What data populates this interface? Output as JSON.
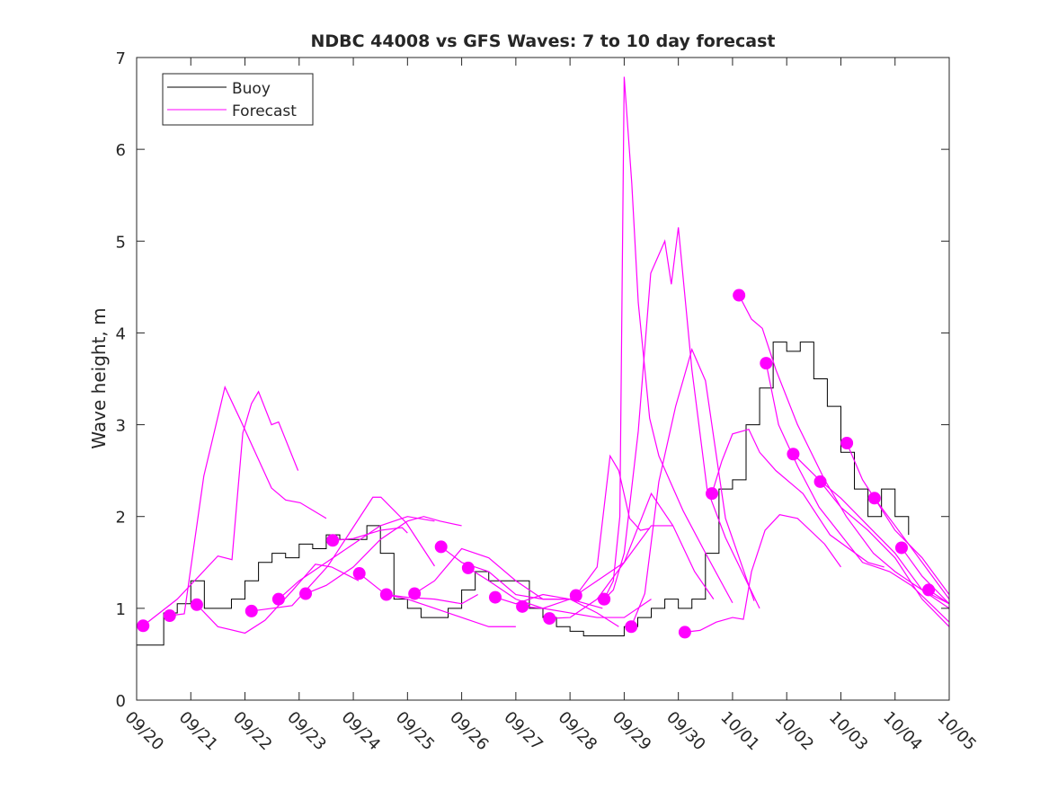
{
  "chart_data": {
    "type": "line",
    "title": "NDBC 44008 vs GFS Waves: 7 to 10 day forecast",
    "xlabel": "",
    "ylabel": "Wave height, m",
    "xlim_days": [
      0,
      15
    ],
    "ylim": [
      0,
      7
    ],
    "yticks": [
      0,
      1,
      2,
      3,
      4,
      5,
      6,
      7
    ],
    "xtick_labels": [
      "09/20",
      "09/21",
      "09/22",
      "09/23",
      "09/24",
      "09/25",
      "09/26",
      "09/27",
      "09/28",
      "09/29",
      "09/30",
      "10/01",
      "10/02",
      "10/03",
      "10/04",
      "10/05"
    ],
    "legend": {
      "placement": "top-left",
      "entries": [
        "Buoy",
        "Forecast"
      ]
    },
    "colors": {
      "buoy": "#000000",
      "forecast": "#ff00ff"
    },
    "buoy": {
      "name": "Buoy",
      "x_days": [
        0,
        0.25,
        0.4,
        0.5,
        0.75,
        1.0,
        1.25,
        1.5,
        1.75,
        2.0,
        2.25,
        2.5,
        2.75,
        3.0,
        3.25,
        3.5,
        3.75,
        4.0,
        4.25,
        4.5,
        4.75,
        5.0,
        5.25,
        5.5,
        5.75,
        6.0,
        6.25,
        6.5,
        6.75,
        7.0,
        7.25,
        7.5,
        7.75,
        8.0,
        8.25,
        8.5,
        8.75,
        9.0,
        9.25,
        9.5,
        9.75,
        10.0,
        10.25,
        10.5,
        10.75,
        11.0,
        11.25,
        11.5,
        11.75,
        12.0,
        12.25,
        12.5,
        12.75,
        13.0,
        13.25,
        13.5,
        13.75,
        14.0,
        14.25
      ],
      "values": [
        0.6,
        0.6,
        0.6,
        0.95,
        1.05,
        1.3,
        1.0,
        1.0,
        1.1,
        1.3,
        1.5,
        1.6,
        1.55,
        1.7,
        1.65,
        1.8,
        1.75,
        1.75,
        1.9,
        1.6,
        1.1,
        1.0,
        0.9,
        0.9,
        1.0,
        1.2,
        1.4,
        1.3,
        1.3,
        1.3,
        1.0,
        0.9,
        0.8,
        0.75,
        0.7,
        0.7,
        0.7,
        0.8,
        0.9,
        1.0,
        1.1,
        1.0,
        1.1,
        1.6,
        2.3,
        2.4,
        3.0,
        3.4,
        3.9,
        3.8,
        3.9,
        3.5,
        3.2,
        2.7,
        2.3,
        2.0,
        2.3,
        2.0,
        1.8
      ]
    },
    "forecasts": [
      {
        "x": [
          0.12,
          0.75,
          1.5,
          1.76,
          1.96,
          2.12,
          2.25,
          2.49,
          2.62,
          2.98
        ],
        "y": [
          0.81,
          1.1,
          1.57,
          1.53,
          2.91,
          3.23,
          3.36,
          3.0,
          3.03,
          2.5
        ]
      },
      {
        "x": [
          0.61,
          0.88,
          1.24,
          1.63,
          1.91,
          2.49,
          2.75,
          3.02,
          3.5
        ],
        "y": [
          0.92,
          0.94,
          2.44,
          3.41,
          3.06,
          2.31,
          2.18,
          2.15,
          1.98
        ]
      },
      {
        "x": [
          1.11,
          1.5,
          2.0,
          2.37,
          2.87,
          3.3,
          3.6,
          4.1
        ],
        "y": [
          1.04,
          0.8,
          0.73,
          0.87,
          1.19,
          1.48,
          1.45,
          1.3
        ]
      },
      {
        "x": [
          2.12,
          2.87,
          3.53,
          4.36,
          4.51,
          4.98,
          5.5
        ],
        "y": [
          0.97,
          1.03,
          1.46,
          2.21,
          2.21,
          1.93,
          1.46
        ]
      },
      {
        "x": [
          2.62,
          3.0,
          3.5,
          4.0,
          4.5,
          5.0,
          5.5
        ],
        "y": [
          1.1,
          1.3,
          1.5,
          1.7,
          1.9,
          2.0,
          1.95
        ]
      },
      {
        "x": [
          3.12,
          3.5,
          4.0,
          4.5,
          5.0,
          5.3,
          5.6,
          6.0
        ],
        "y": [
          1.16,
          1.25,
          1.45,
          1.75,
          1.95,
          2.0,
          1.95,
          1.9
        ]
      },
      {
        "x": [
          3.62,
          4.0,
          4.5,
          4.9,
          5.0
        ],
        "y": [
          1.74,
          1.76,
          1.85,
          1.88,
          1.82
        ]
      },
      {
        "x": [
          4.11,
          4.6,
          5.0,
          5.5,
          6.0,
          6.5,
          7.0
        ],
        "y": [
          1.38,
          1.15,
          1.1,
          1.0,
          0.9,
          0.8,
          0.8
        ]
      },
      {
        "x": [
          4.61,
          5.0,
          5.5,
          6.0,
          6.3
        ],
        "y": [
          1.15,
          1.12,
          1.1,
          1.05,
          1.15
        ]
      },
      {
        "x": [
          5.13,
          5.5,
          6.0,
          6.5,
          7.0,
          7.5,
          8.1
        ],
        "y": [
          1.16,
          1.3,
          1.65,
          1.55,
          1.3,
          1.1,
          1.1
        ]
      },
      {
        "x": [
          5.62,
          6.0,
          6.5,
          7.0,
          7.5,
          8.0,
          8.6
        ],
        "y": [
          1.67,
          1.5,
          1.4,
          1.15,
          1.1,
          1.1,
          1.0
        ]
      },
      {
        "x": [
          6.12,
          6.5,
          7.0,
          7.5,
          8.0,
          8.5,
          9.0,
          9.5
        ],
        "y": [
          1.44,
          1.3,
          1.1,
          1.0,
          0.95,
          0.9,
          0.9,
          1.1
        ]
      },
      {
        "x": [
          6.62,
          7.0,
          7.5,
          8.0,
          8.5,
          8.9
        ],
        "y": [
          1.12,
          1.05,
          1.15,
          1.1,
          0.95,
          0.8
        ]
      },
      {
        "x": [
          7.12,
          7.5,
          8.0,
          8.5,
          9.0,
          9.5,
          9.9
        ],
        "y": [
          1.02,
          1.0,
          1.1,
          1.3,
          1.5,
          1.9,
          1.9
        ]
      },
      {
        "x": [
          7.62,
          8.0,
          8.5,
          9.0,
          9.5,
          9.9,
          10.3,
          10.65
        ],
        "y": [
          0.89,
          0.9,
          1.1,
          1.5,
          2.25,
          1.9,
          1.4,
          1.1
        ]
      },
      {
        "x": [
          8.11,
          8.5,
          8.74,
          8.9,
          9.1,
          9.3,
          9.47
        ],
        "y": [
          1.14,
          1.45,
          2.66,
          2.5,
          1.98,
          1.85,
          1.87
        ]
      },
      {
        "x": [
          8.63,
          8.8,
          8.92,
          9.0,
          9.14,
          9.26,
          9.47,
          9.64,
          10.09,
          10.53,
          11.0
        ],
        "y": [
          1.1,
          1.3,
          2.0,
          6.79,
          5.63,
          4.33,
          3.07,
          2.66,
          2.06,
          1.57,
          1.06
        ]
      },
      {
        "x": [
          8.63,
          8.8,
          9.0,
          9.26,
          9.49,
          9.75,
          9.87,
          10.0,
          10.25,
          10.53,
          10.87,
          11.5
        ],
        "y": [
          1.1,
          1.2,
          1.6,
          2.93,
          4.65,
          5.0,
          4.53,
          5.15,
          3.6,
          2.3,
          1.77,
          1.0
        ]
      },
      {
        "x": [
          9.13,
          9.38,
          9.64,
          9.95,
          10.25,
          10.5,
          10.87,
          11.4
        ],
        "y": [
          0.8,
          1.16,
          2.38,
          3.2,
          3.82,
          3.48,
          1.98,
          1.08
        ]
      },
      {
        "x": [
          10.12,
          10.4,
          10.7,
          11.0,
          11.2,
          11.35,
          11.6,
          11.87,
          12.2,
          12.7,
          13.0
        ],
        "y": [
          0.74,
          0.76,
          0.85,
          0.9,
          0.88,
          1.4,
          1.85,
          2.02,
          1.98,
          1.7,
          1.45
        ]
      },
      {
        "x": [
          10.62,
          10.8,
          11.0,
          11.3,
          11.5,
          11.8,
          12.3,
          12.8,
          13.5,
          13.8
        ],
        "y": [
          2.25,
          2.6,
          2.9,
          2.95,
          2.7,
          2.5,
          2.25,
          1.8,
          1.5,
          1.45
        ]
      },
      {
        "x": [
          11.12,
          11.35,
          11.55,
          11.8,
          12.2,
          12.7,
          13.1,
          13.6,
          14.0,
          14.5,
          15.0
        ],
        "y": [
          4.41,
          4.15,
          4.05,
          3.6,
          3.0,
          2.4,
          2.0,
          1.6,
          1.4,
          1.2,
          1.0
        ]
      },
      {
        "x": [
          11.62,
          11.85,
          12.2,
          12.6,
          13.0,
          13.4,
          13.9,
          14.3,
          15.0
        ],
        "y": [
          3.67,
          3.0,
          2.55,
          2.1,
          1.8,
          1.5,
          1.4,
          1.25,
          0.85
        ]
      },
      {
        "x": [
          12.12,
          12.6,
          13.0,
          13.5,
          14.0,
          14.5,
          15.0
        ],
        "y": [
          2.68,
          2.4,
          2.2,
          1.9,
          1.6,
          1.2,
          1.05
        ]
      },
      {
        "x": [
          12.62,
          13.0,
          13.5,
          14.0,
          14.5,
          15.0
        ],
        "y": [
          2.38,
          2.1,
          1.85,
          1.55,
          1.1,
          0.8
        ]
      },
      {
        "x": [
          13.11,
          13.4,
          13.62,
          14.0,
          14.5,
          15.0
        ],
        "y": [
          2.8,
          2.4,
          2.2,
          1.9,
          1.5,
          1.1
        ]
      },
      {
        "x": [
          13.62,
          14.0,
          14.5,
          15.0
        ],
        "y": [
          2.2,
          1.85,
          1.55,
          1.15
        ]
      },
      {
        "x": [
          14.12,
          14.5,
          15.0
        ],
        "y": [
          1.66,
          1.35,
          1.05
        ]
      },
      {
        "x": [
          14.62,
          15.0
        ],
        "y": [
          1.2,
          1.05
        ]
      }
    ]
  }
}
